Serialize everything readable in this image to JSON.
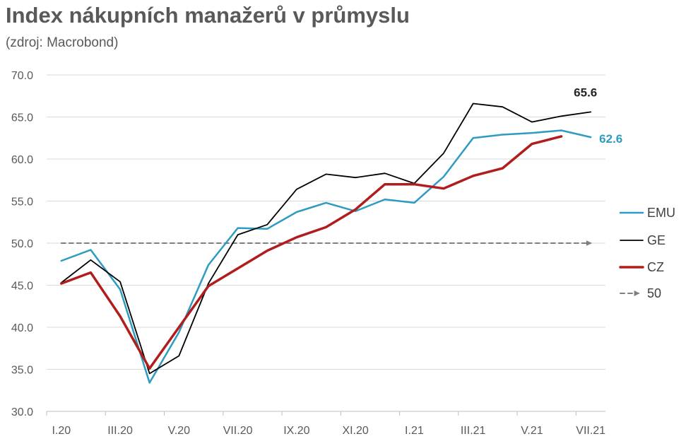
{
  "title": "Index nákupních manažerů v průmyslu",
  "subtitle": "(zdroj: Macrobond)",
  "chart_data": {
    "type": "line",
    "x": [
      "I.20",
      "II.20",
      "III.20",
      "IV.20",
      "V.20",
      "VI.20",
      "VII.20",
      "VIII.20",
      "IX.20",
      "X.20",
      "XI.20",
      "XII.20",
      "I.21",
      "II.21",
      "III.21",
      "IV.21",
      "V.21",
      "VI.21",
      "VII.21"
    ],
    "x_tick_labels": [
      "I.20",
      "III.20",
      "V.20",
      "VII.20",
      "IX.20",
      "XI.20",
      "I.21",
      "III.21",
      "V.21",
      "VII.21"
    ],
    "y_ticks": [
      "30.0",
      "35.0",
      "40.0",
      "45.0",
      "50.0",
      "55.0",
      "60.0",
      "65.0",
      "70.0"
    ],
    "ylim": [
      30,
      70
    ],
    "grid": true,
    "legend_position": "right",
    "series": [
      {
        "name": "EMU",
        "color": "#2E9BC0",
        "width": 2.5,
        "values": [
          47.9,
          49.2,
          44.5,
          33.4,
          39.4,
          47.4,
          51.8,
          51.7,
          53.7,
          54.8,
          53.8,
          55.2,
          54.8,
          57.9,
          62.5,
          62.9,
          63.1,
          63.4,
          62.6
        ]
      },
      {
        "name": "GE",
        "color": "#000000",
        "width": 1.8,
        "values": [
          45.3,
          48.0,
          45.4,
          34.5,
          36.6,
          45.2,
          51.0,
          52.2,
          56.4,
          58.2,
          57.8,
          58.3,
          57.1,
          60.7,
          66.6,
          66.2,
          64.4,
          65.1,
          65.6
        ]
      },
      {
        "name": "CZ",
        "color": "#B11D1D",
        "width": 3.5,
        "values": [
          45.2,
          46.5,
          41.3,
          35.1,
          40.0,
          44.9,
          47.0,
          49.1,
          50.7,
          51.9,
          54.0,
          57.0,
          57.0,
          56.5,
          58.0,
          58.9,
          61.8,
          62.7,
          null
        ]
      },
      {
        "name": "50",
        "color": "#7F7F7F",
        "width": 2,
        "dashed": true,
        "values": [
          50,
          50,
          50,
          50,
          50,
          50,
          50,
          50,
          50,
          50,
          50,
          50,
          50,
          50,
          50,
          50,
          50,
          50,
          50
        ]
      }
    ],
    "end_labels": [
      {
        "series": "GE",
        "text": "65.6",
        "color": "#262626"
      },
      {
        "series": "EMU",
        "text": "62.6",
        "color": "#2E9BC0"
      }
    ]
  }
}
